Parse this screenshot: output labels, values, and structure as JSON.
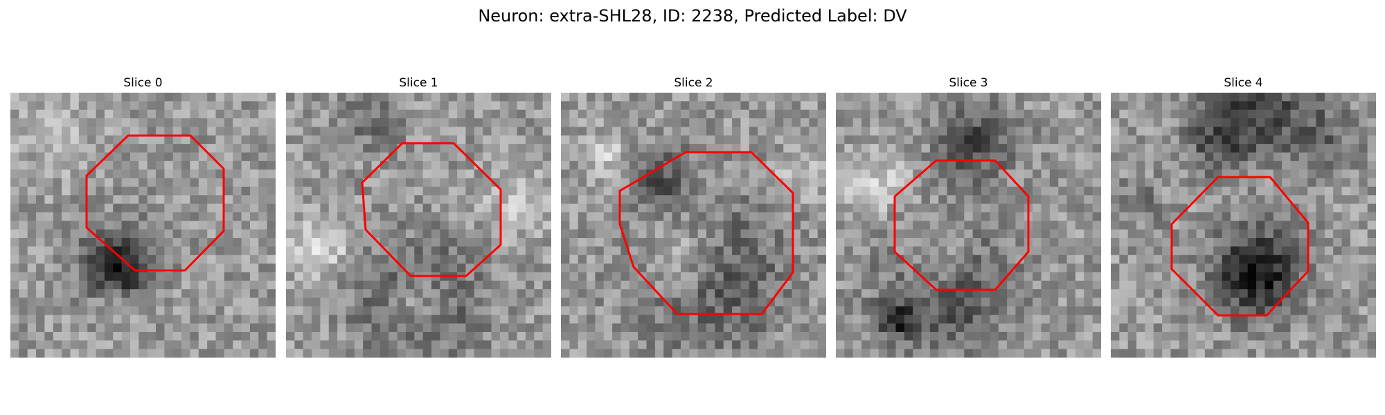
{
  "figure": {
    "title": "Neuron: extra-SHL28, ID: 2238, Predicted Label: DV"
  },
  "panels": [
    {
      "title": "Slice 0"
    },
    {
      "title": "Slice 1"
    },
    {
      "title": "Slice 2"
    },
    {
      "title": "Slice 3"
    },
    {
      "title": "Slice 4"
    }
  ],
  "colors": {
    "roi_outline": "#ff0000",
    "background": "#ffffff"
  }
}
